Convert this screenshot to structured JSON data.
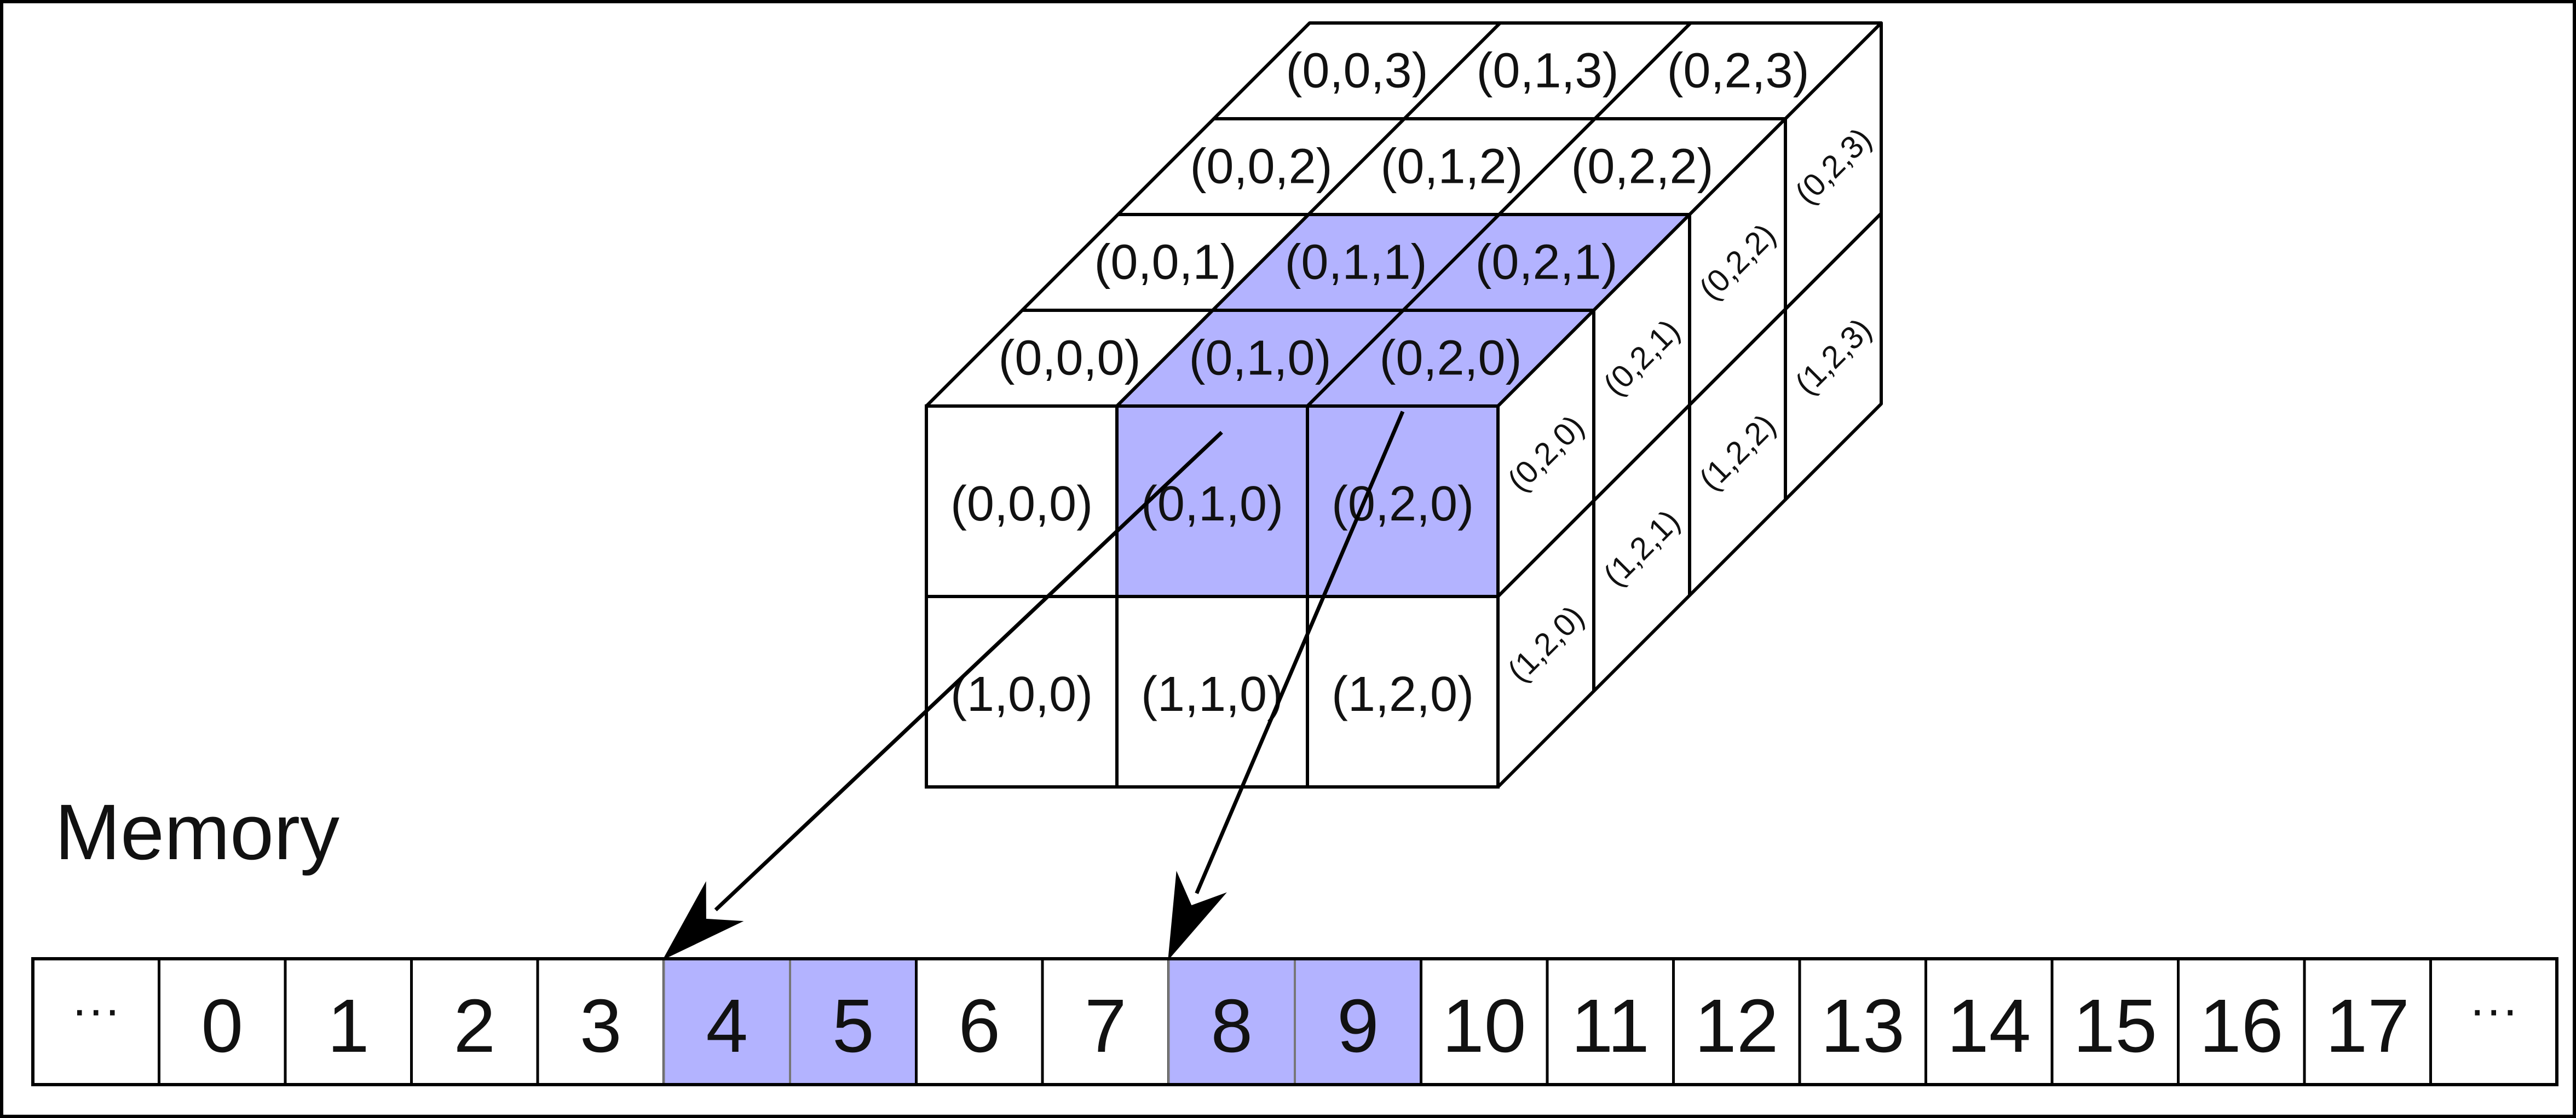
{
  "diagram": {
    "title": "Memory",
    "highlight_color": "#b3b3ff",
    "top_face": [
      {
        "label": "(0,0,3)",
        "row": 3,
        "col": 0,
        "hl": false
      },
      {
        "label": "(0,1,3)",
        "row": 3,
        "col": 1,
        "hl": false
      },
      {
        "label": "(0,2,3)",
        "row": 3,
        "col": 2,
        "hl": false
      },
      {
        "label": "(0,0,2)",
        "row": 2,
        "col": 0,
        "hl": false
      },
      {
        "label": "(0,1,2)",
        "row": 2,
        "col": 1,
        "hl": false
      },
      {
        "label": "(0,2,2)",
        "row": 2,
        "col": 2,
        "hl": false
      },
      {
        "label": "(0,0,1)",
        "row": 1,
        "col": 0,
        "hl": false
      },
      {
        "label": "(0,1,1)",
        "row": 1,
        "col": 1,
        "hl": true
      },
      {
        "label": "(0,2,1)",
        "row": 1,
        "col": 2,
        "hl": true
      },
      {
        "label": "(0,0,0)",
        "row": 0,
        "col": 0,
        "hl": false
      },
      {
        "label": "(0,1,0)",
        "row": 0,
        "col": 1,
        "hl": true
      },
      {
        "label": "(0,2,0)",
        "row": 0,
        "col": 2,
        "hl": true
      }
    ],
    "front_face": [
      {
        "label": "(0,0,0)",
        "row": 0,
        "col": 0,
        "hl": false
      },
      {
        "label": "(0,1,0)",
        "row": 0,
        "col": 1,
        "hl": true
      },
      {
        "label": "(0,2,0)",
        "row": 0,
        "col": 2,
        "hl": true
      },
      {
        "label": "(1,0,0)",
        "row": 1,
        "col": 0,
        "hl": false
      },
      {
        "label": "(1,1,0)",
        "row": 1,
        "col": 1,
        "hl": false
      },
      {
        "label": "(1,2,0)",
        "row": 1,
        "col": 2,
        "hl": false
      }
    ],
    "side_face": [
      {
        "label": "(0,2,0)",
        "row": 0,
        "depth": 0
      },
      {
        "label": "(0,2,1)",
        "row": 0,
        "depth": 1
      },
      {
        "label": "(0,2,2)",
        "row": 0,
        "depth": 2
      },
      {
        "label": "(0,2,3)",
        "row": 0,
        "depth": 3
      },
      {
        "label": "(1,2,0)",
        "row": 1,
        "depth": 0
      },
      {
        "label": "(1,2,1)",
        "row": 1,
        "depth": 1
      },
      {
        "label": "(1,2,2)",
        "row": 1,
        "depth": 2
      },
      {
        "label": "(1,2,3)",
        "row": 1,
        "depth": 3
      }
    ],
    "memory": [
      {
        "label": "···",
        "hl": false
      },
      {
        "label": "0",
        "hl": false
      },
      {
        "label": "1",
        "hl": false
      },
      {
        "label": "2",
        "hl": false
      },
      {
        "label": "3",
        "hl": false
      },
      {
        "label": "4",
        "hl": true
      },
      {
        "label": "5",
        "hl": true
      },
      {
        "label": "6",
        "hl": false
      },
      {
        "label": "7",
        "hl": false
      },
      {
        "label": "8",
        "hl": true
      },
      {
        "label": "9",
        "hl": true
      },
      {
        "label": "10",
        "hl": false
      },
      {
        "label": "11",
        "hl": false
      },
      {
        "label": "12",
        "hl": false
      },
      {
        "label": "13",
        "hl": false
      },
      {
        "label": "14",
        "hl": false
      },
      {
        "label": "15",
        "hl": false
      },
      {
        "label": "16",
        "hl": false
      },
      {
        "label": "17",
        "hl": false
      },
      {
        "label": "···",
        "hl": false
      }
    ],
    "arrows": [
      {
        "from_front": "(0,1,0)",
        "to_memory": "4"
      },
      {
        "from_front": "(0,2,0)",
        "to_memory": "8"
      }
    ]
  }
}
